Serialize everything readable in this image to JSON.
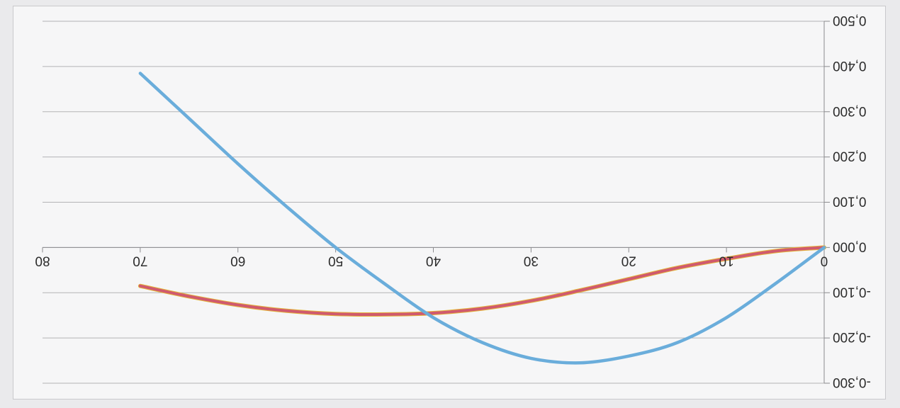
{
  "chart_data": {
    "type": "line",
    "title": "",
    "xlabel": "",
    "ylabel": "",
    "xlim": [
      0,
      80
    ],
    "ylim": [
      -0.3,
      0.5
    ],
    "x_ticks": [
      "0",
      "10",
      "20",
      "30",
      "40",
      "50",
      "60",
      "70",
      "80"
    ],
    "y_ticks": [
      "-0,300",
      "-0,200",
      "-0,100",
      "0,000",
      "0,100",
      "0,200",
      "0,300",
      "0,400",
      "0,500"
    ],
    "grid": true,
    "legend": "none",
    "colors": {
      "series_1": "#6aaddb",
      "series_2": "#d05a6e",
      "series_2_edge": "#e4b53c"
    },
    "series": [
      {
        "color": "#6aaddb",
        "points": [
          [
            0,
            0
          ],
          [
            5,
            -0.08
          ],
          [
            10,
            -0.155
          ],
          [
            15,
            -0.21
          ],
          [
            20,
            -0.24
          ],
          [
            25,
            -0.255
          ],
          [
            30,
            -0.245
          ],
          [
            35,
            -0.21
          ],
          [
            40,
            -0.155
          ],
          [
            45,
            -0.08
          ],
          [
            50,
            0.0
          ],
          [
            55,
            0.09
          ],
          [
            60,
            0.185
          ],
          [
            65,
            0.285
          ],
          [
            70,
            0.385
          ]
        ]
      },
      {
        "color": "#d05a6e",
        "points": [
          [
            0,
            0
          ],
          [
            5,
            -0.008
          ],
          [
            10,
            -0.025
          ],
          [
            15,
            -0.045
          ],
          [
            20,
            -0.07
          ],
          [
            25,
            -0.095
          ],
          [
            30,
            -0.118
          ],
          [
            35,
            -0.135
          ],
          [
            40,
            -0.145
          ],
          [
            45,
            -0.148
          ],
          [
            50,
            -0.147
          ],
          [
            55,
            -0.14
          ],
          [
            60,
            -0.127
          ],
          [
            65,
            -0.108
          ],
          [
            70,
            -0.085
          ]
        ]
      }
    ]
  }
}
